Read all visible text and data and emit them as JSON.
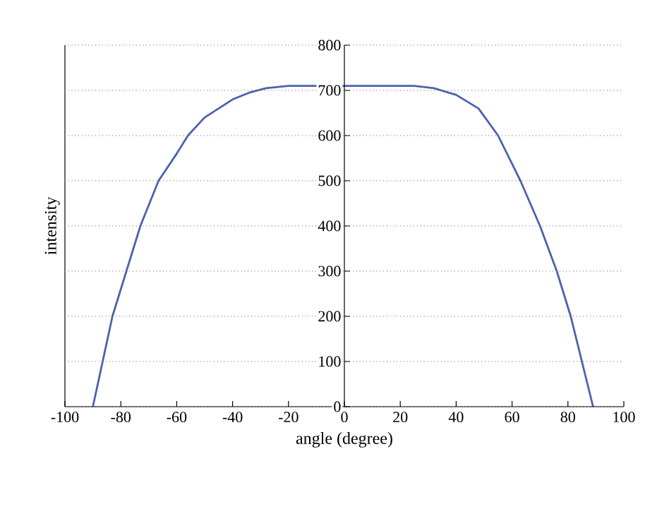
{
  "chart_data": {
    "type": "line",
    "xlabel": "angle (degree)",
    "ylabel": "intensity",
    "x": [
      -90,
      -86.5,
      -83,
      -78,
      -73,
      -66.5,
      -60,
      -56,
      -50,
      -45,
      -40,
      -34,
      -28,
      -20,
      0,
      25,
      32,
      40,
      48,
      55,
      63,
      70,
      76,
      81,
      85,
      89
    ],
    "series": [
      {
        "color": "#4a63ab",
        "values": [
          0,
          100,
          200,
          300,
          400,
          500,
          560,
          600,
          640,
          660,
          680,
          695,
          705,
          710,
          710,
          710,
          705,
          690,
          660,
          600,
          500,
          400,
          300,
          200,
          100,
          0
        ]
      }
    ],
    "xlim": [
      -100,
      100
    ],
    "ylim": [
      0,
      800
    ],
    "xticks": [
      -100,
      -80,
      -60,
      -40,
      -20,
      0,
      20,
      40,
      60,
      80,
      100
    ],
    "yticks": [
      0,
      100,
      200,
      300,
      400,
      500,
      600,
      700,
      800
    ],
    "grid": "y",
    "marker": "none",
    "line_style": "solid"
  }
}
